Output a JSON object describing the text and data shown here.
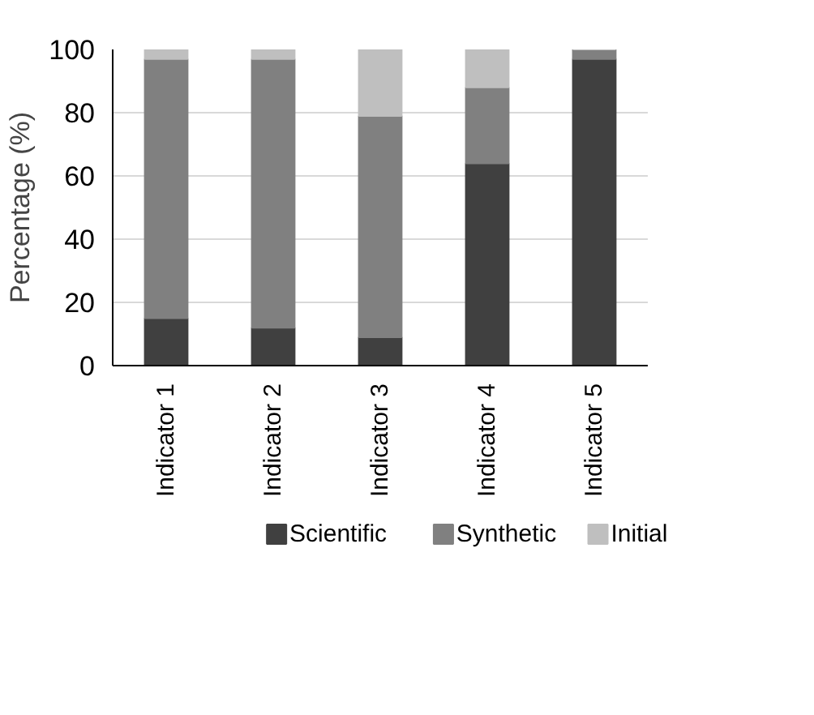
{
  "chart_data": {
    "type": "bar",
    "stacked": true,
    "ylabel": "Percentage (%)",
    "categories": [
      "Indicator 1",
      "Indicator 2",
      "Indicator 3",
      "Indicator 4",
      "Indicator 5"
    ],
    "series": [
      {
        "name": "Scientific",
        "color": "#404040",
        "values": [
          15,
          12,
          9,
          64,
          97
        ]
      },
      {
        "name": "Synthetic",
        "color": "#808080",
        "values": [
          82,
          85,
          70,
          24,
          3
        ]
      },
      {
        "name": "Initial",
        "color": "#bfbfbf",
        "values": [
          3,
          3,
          21,
          12,
          0
        ]
      }
    ],
    "ylim": [
      0,
      100
    ],
    "yticks": [
      0,
      20,
      40,
      60,
      80,
      100
    ],
    "grid": "y",
    "legend": "bottom"
  }
}
